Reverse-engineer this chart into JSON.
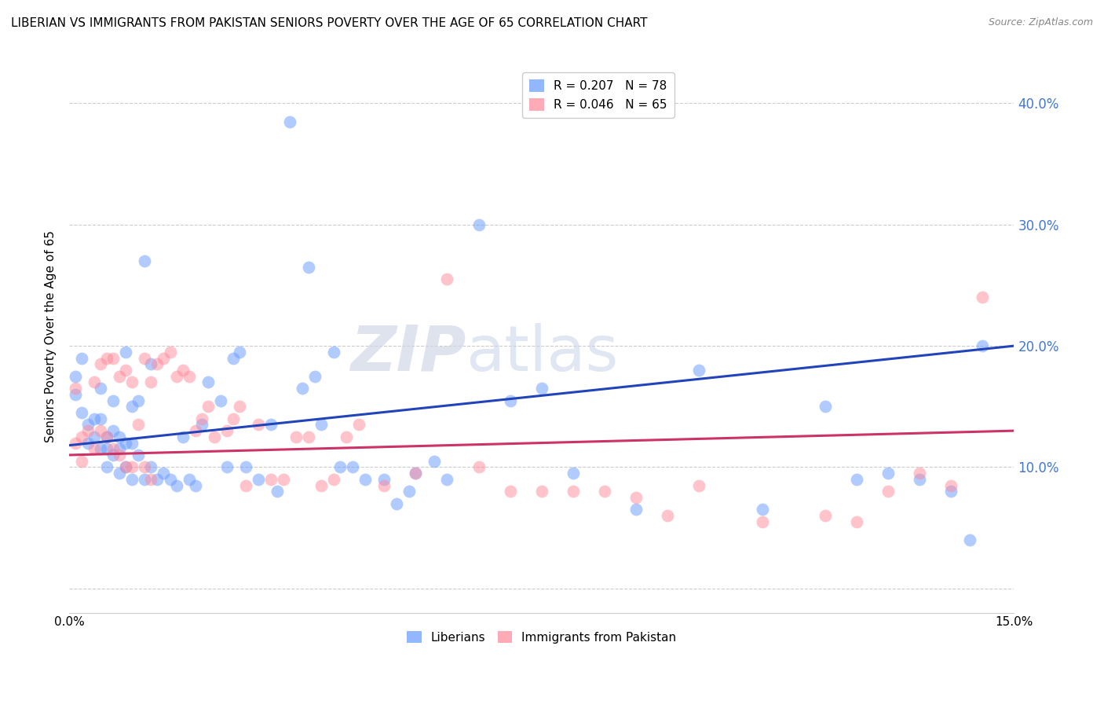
{
  "title": "LIBERIAN VS IMMIGRANTS FROM PAKISTAN SENIORS POVERTY OVER THE AGE OF 65 CORRELATION CHART",
  "source": "Source: ZipAtlas.com",
  "ylabel": "Seniors Poverty Over the Age of 65",
  "xlim": [
    0.0,
    0.15
  ],
  "ylim": [
    -0.02,
    0.435
  ],
  "yticks": [
    0.0,
    0.1,
    0.2,
    0.3,
    0.4
  ],
  "ytick_labels": [
    "",
    "10.0%",
    "20.0%",
    "30.0%",
    "40.0%"
  ],
  "watermark": "ZIPatlas",
  "liberian_color": "#6699ff",
  "pakistan_color": "#ff8899",
  "trendline1_color": "#2244bb",
  "trendline2_color": "#cc3366",
  "trendline1_x0": 0.0,
  "trendline1_y0": 0.118,
  "trendline1_x1": 0.15,
  "trendline1_y1": 0.2,
  "trendline2_x0": 0.0,
  "trendline2_y0": 0.11,
  "trendline2_x1": 0.15,
  "trendline2_y1": 0.13,
  "liberian_x": [
    0.001,
    0.001,
    0.002,
    0.002,
    0.003,
    0.003,
    0.004,
    0.004,
    0.005,
    0.005,
    0.005,
    0.006,
    0.006,
    0.006,
    0.007,
    0.007,
    0.007,
    0.008,
    0.008,
    0.008,
    0.009,
    0.009,
    0.009,
    0.01,
    0.01,
    0.01,
    0.011,
    0.011,
    0.012,
    0.012,
    0.013,
    0.013,
    0.014,
    0.015,
    0.016,
    0.017,
    0.018,
    0.019,
    0.02,
    0.021,
    0.022,
    0.024,
    0.025,
    0.026,
    0.027,
    0.028,
    0.03,
    0.032,
    0.033,
    0.035,
    0.037,
    0.038,
    0.039,
    0.04,
    0.042,
    0.043,
    0.045,
    0.047,
    0.05,
    0.052,
    0.054,
    0.055,
    0.058,
    0.06,
    0.065,
    0.07,
    0.075,
    0.08,
    0.09,
    0.1,
    0.11,
    0.12,
    0.125,
    0.13,
    0.135,
    0.14,
    0.143,
    0.145
  ],
  "liberian_y": [
    0.175,
    0.16,
    0.19,
    0.145,
    0.135,
    0.12,
    0.14,
    0.125,
    0.165,
    0.14,
    0.115,
    0.125,
    0.115,
    0.1,
    0.155,
    0.13,
    0.11,
    0.125,
    0.115,
    0.095,
    0.195,
    0.12,
    0.1,
    0.15,
    0.12,
    0.09,
    0.155,
    0.11,
    0.27,
    0.09,
    0.185,
    0.1,
    0.09,
    0.095,
    0.09,
    0.085,
    0.125,
    0.09,
    0.085,
    0.135,
    0.17,
    0.155,
    0.1,
    0.19,
    0.195,
    0.1,
    0.09,
    0.135,
    0.08,
    0.385,
    0.165,
    0.265,
    0.175,
    0.135,
    0.195,
    0.1,
    0.1,
    0.09,
    0.09,
    0.07,
    0.08,
    0.095,
    0.105,
    0.09,
    0.3,
    0.155,
    0.165,
    0.095,
    0.065,
    0.18,
    0.065,
    0.15,
    0.09,
    0.095,
    0.09,
    0.08,
    0.04,
    0.2
  ],
  "pakistan_x": [
    0.001,
    0.001,
    0.002,
    0.002,
    0.003,
    0.004,
    0.004,
    0.005,
    0.005,
    0.006,
    0.006,
    0.007,
    0.007,
    0.008,
    0.008,
    0.009,
    0.009,
    0.01,
    0.01,
    0.011,
    0.012,
    0.012,
    0.013,
    0.013,
    0.014,
    0.015,
    0.016,
    0.017,
    0.018,
    0.019,
    0.02,
    0.021,
    0.022,
    0.023,
    0.025,
    0.026,
    0.027,
    0.028,
    0.03,
    0.032,
    0.034,
    0.036,
    0.038,
    0.04,
    0.042,
    0.044,
    0.046,
    0.05,
    0.055,
    0.06,
    0.065,
    0.07,
    0.075,
    0.08,
    0.085,
    0.09,
    0.095,
    0.1,
    0.11,
    0.12,
    0.125,
    0.13,
    0.135,
    0.14,
    0.145
  ],
  "pakistan_y": [
    0.165,
    0.12,
    0.125,
    0.105,
    0.13,
    0.17,
    0.115,
    0.185,
    0.13,
    0.19,
    0.125,
    0.19,
    0.115,
    0.175,
    0.11,
    0.18,
    0.1,
    0.17,
    0.1,
    0.135,
    0.19,
    0.1,
    0.17,
    0.09,
    0.185,
    0.19,
    0.195,
    0.175,
    0.18,
    0.175,
    0.13,
    0.14,
    0.15,
    0.125,
    0.13,
    0.14,
    0.15,
    0.085,
    0.135,
    0.09,
    0.09,
    0.125,
    0.125,
    0.085,
    0.09,
    0.125,
    0.135,
    0.085,
    0.095,
    0.255,
    0.1,
    0.08,
    0.08,
    0.08,
    0.08,
    0.075,
    0.06,
    0.085,
    0.055,
    0.06,
    0.055,
    0.08,
    0.095,
    0.085,
    0.24
  ]
}
